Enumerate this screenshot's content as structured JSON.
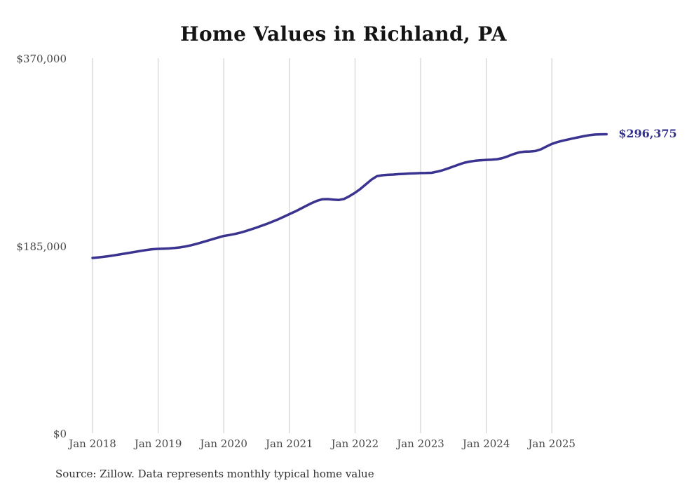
{
  "chart_data": {
    "type": "line",
    "title": "Home Values in Richland, PA",
    "source": "Source: Zillow. Data represents monthly typical home value",
    "series_name": "Monthly typical home value",
    "end_label": "$296,375",
    "end_value": 296375,
    "start_month": "2018-01",
    "frequency": "monthly",
    "ylim": [
      0,
      370000
    ],
    "grid": "vertical-only",
    "legend": "none",
    "colors": {
      "line": "#3a338f",
      "end_label": "#34308d",
      "grid": "#c8c8c8",
      "axis_text": "#474747",
      "title_text": "#141414"
    },
    "y_ticks": [
      {
        "label": "$370,000",
        "value": 370000
      },
      {
        "label": "$185,000",
        "value": 185000
      },
      {
        "label": "$0",
        "value": 0
      }
    ],
    "x_ticks": [
      "Jan 2018",
      "Jan 2019",
      "Jan 2020",
      "Jan 2021",
      "Jan 2022",
      "Jan 2023",
      "Jan 2024",
      "Jan 2025"
    ],
    "values": [
      174300,
      174800,
      175400,
      176100,
      176900,
      177800,
      178700,
      179600,
      180500,
      181400,
      182200,
      182900,
      183300,
      183500,
      183700,
      184100,
      184700,
      185600,
      186800,
      188200,
      189700,
      191300,
      192900,
      194500,
      196000,
      196900,
      197900,
      199200,
      200800,
      202500,
      204300,
      206200,
      208200,
      210300,
      212500,
      215000,
      217500,
      220000,
      222700,
      225500,
      228200,
      230600,
      232200,
      232400,
      231800,
      231500,
      232500,
      235300,
      238600,
      242500,
      247000,
      251500,
      255000,
      255900,
      256300,
      256600,
      257000,
      257300,
      257600,
      257800,
      258000,
      258100,
      258300,
      259400,
      260800,
      262600,
      264500,
      266500,
      268300,
      269400,
      270200,
      270700,
      271000,
      271300,
      271700,
      272800,
      274700,
      276800,
      278400,
      279100,
      279300,
      279800,
      281500,
      284200,
      286800,
      288600,
      290000,
      291200,
      292400,
      293500,
      294600,
      295500,
      296100,
      296300,
      296375
    ]
  }
}
